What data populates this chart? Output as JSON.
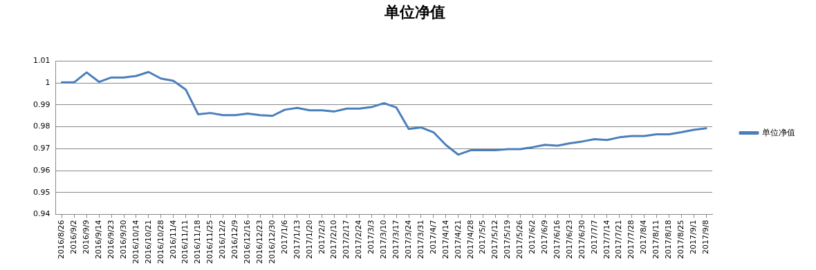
{
  "chart_data": {
    "type": "line",
    "title": "单位净值",
    "categories": [
      "2016/8/26",
      "2016/9/2",
      "2016/9/9",
      "2016/9/14",
      "2016/9/23",
      "2016/9/30",
      "2016/10/14",
      "2016/10/21",
      "2016/10/28",
      "2016/11/4",
      "2016/11/11",
      "2016/11/18",
      "2016/11/25",
      "2016/12/2",
      "2016/12/9",
      "2016/12/16",
      "2016/12/23",
      "2016/12/30",
      "2017/1/6",
      "2017/1/13",
      "2017/1/20",
      "2017/2/3",
      "2017/2/10",
      "2017/2/17",
      "2017/2/24",
      "2017/3/3",
      "2017/3/10",
      "2017/3/17",
      "2017/3/24",
      "2017/3/31",
      "2017/4/7",
      "2017/4/14",
      "2017/4/21",
      "2017/4/28",
      "2017/5/5",
      "2017/5/12",
      "2017/5/19",
      "2017/5/26",
      "2017/6/2",
      "2017/6/9",
      "2017/6/16",
      "2017/6/23",
      "2017/6/30",
      "2017/7/7",
      "2017/7/14",
      "2017/7/21",
      "2017/7/28",
      "2017/8/4",
      "2017/8/11",
      "2017/8/18",
      "2017/8/25",
      "2017/9/1",
      "2017/9/8"
    ],
    "series": [
      {
        "name": "单位净值",
        "color": "#4a7ebb",
        "values": [
          1.0003,
          1.0003,
          1.0048,
          1.0005,
          1.0025,
          1.0025,
          1.0032,
          1.005,
          1.002,
          1.001,
          0.997,
          0.9857,
          0.9863,
          0.9853,
          0.9853,
          0.986,
          0.9853,
          0.985,
          0.9878,
          0.9886,
          0.9875,
          0.9875,
          0.987,
          0.9883,
          0.9883,
          0.989,
          0.9908,
          0.9888,
          0.979,
          0.9797,
          0.9775,
          0.9717,
          0.9673,
          0.9693,
          0.9693,
          0.9693,
          0.9698,
          0.9698,
          0.9707,
          0.9718,
          0.9714,
          0.9725,
          0.9733,
          0.9744,
          0.974,
          0.9752,
          0.9758,
          0.9758,
          0.9766,
          0.9766,
          0.9775,
          0.9786,
          0.9793
        ]
      }
    ],
    "ylim": [
      0.94,
      1.01
    ],
    "yticks": [
      0.94,
      0.95,
      0.96,
      0.97,
      0.98,
      0.99,
      1,
      1.01
    ],
    "grid": "y",
    "legend": "right",
    "marker": "none",
    "line_style": "solid"
  }
}
